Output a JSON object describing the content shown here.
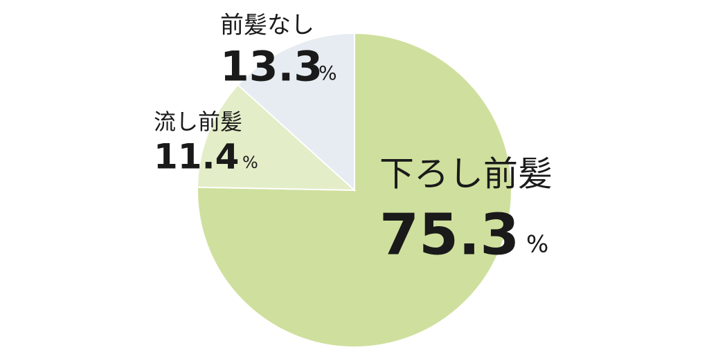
{
  "chart_data": {
    "type": "pie",
    "categories": [
      "下ろし前髪",
      "流し前髪",
      "前髪なし"
    ],
    "values": [
      75.3,
      11.4,
      13.3
    ],
    "unit": "%",
    "colors": [
      "#cfe09e",
      "#e3edc8",
      "#e6ecf1"
    ]
  }
}
